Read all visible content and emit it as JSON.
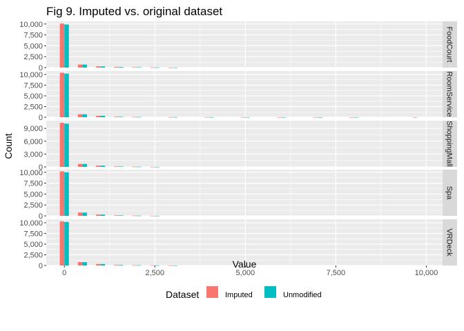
{
  "chart_data": {
    "type": "bar",
    "title": "Fig 9. Imputed vs. original dataset",
    "xlabel": "Value",
    "ylabel": "Count",
    "xlim": [
      -500,
      10450
    ],
    "x_ticks": [
      0,
      2500,
      5000,
      7500,
      10000
    ],
    "x_tick_labels": [
      "0",
      "2,500",
      "5,000",
      "7,500",
      "10,000"
    ],
    "bin_width": 250,
    "legend": {
      "title": "Dataset",
      "position": "bottom",
      "entries": [
        {
          "name": "Imputed",
          "color": "#F8766D"
        },
        {
          "name": "Unmodified",
          "color": "#00BFC4"
        }
      ]
    },
    "colors": {
      "panel_bg": "#ebebeb",
      "strip_bg": "#d9d9d9",
      "grid": "#ffffff"
    },
    "panels": [
      {
        "name": "FoodCourt",
        "ylim": [
          0,
          10600
        ],
        "y_ticks": [
          0,
          2500,
          5000,
          7500,
          10000
        ],
        "y_tick_labels": [
          "0",
          "2,500",
          "5,000",
          "7,500",
          "10,000"
        ],
        "bins": [
          0,
          500,
          1000,
          1500,
          2000,
          2500,
          3000
        ],
        "series": [
          {
            "name": "Imputed",
            "values": [
              10100,
              700,
              280,
              150,
              90,
              40,
              15
            ]
          },
          {
            "name": "Unmodified",
            "values": [
              9900,
              690,
              270,
              140,
              85,
              35,
              12
            ]
          }
        ]
      },
      {
        "name": "RoomService",
        "ylim": [
          0,
          10800
        ],
        "y_ticks": [
          0,
          2500,
          5000,
          7500,
          10000
        ],
        "y_tick_labels": [
          "0",
          "2,500",
          "5,000",
          "7,500",
          "10,000"
        ],
        "bins": [
          0,
          500,
          1000,
          1500,
          2000,
          3000,
          4000,
          5000,
          6000,
          7000,
          8000,
          9750
        ],
        "series": [
          {
            "name": "Imputed",
            "values": [
              10400,
              700,
              350,
              120,
              60,
              30,
              20,
              15,
              10,
              8,
              6,
              5
            ]
          },
          {
            "name": "Unmodified",
            "values": [
              10200,
              680,
              340,
              110,
              55,
              28,
              18,
              12,
              9,
              7,
              5,
              0
            ]
          }
        ]
      },
      {
        "name": "ShoppingMall",
        "ylim": [
          0,
          10800
        ],
        "y_ticks": [
          0,
          3000,
          6000,
          9000
        ],
        "y_tick_labels": [
          "0",
          "3,000",
          "6,000",
          "9,000"
        ],
        "bins": [
          0,
          500,
          1000,
          1500,
          2000,
          2500
        ],
        "series": [
          {
            "name": "Imputed",
            "values": [
              10300,
              700,
              300,
              110,
              50,
              15
            ]
          },
          {
            "name": "Unmodified",
            "values": [
              10100,
              690,
              290,
              105,
              45,
              12
            ]
          }
        ]
      },
      {
        "name": "Spa",
        "ylim": [
          0,
          10600
        ],
        "y_ticks": [
          0,
          2500,
          5000,
          7500,
          10000
        ],
        "y_tick_labels": [
          "0",
          "2,500",
          "5,000",
          "7,500",
          "10,000"
        ],
        "bins": [
          0,
          500,
          1000,
          1500,
          2000,
          2500
        ],
        "series": [
          {
            "name": "Imputed",
            "values": [
              10200,
              750,
              300,
              110,
              50,
              15
            ]
          },
          {
            "name": "Unmodified",
            "values": [
              10000,
              740,
              290,
              105,
              45,
              12
            ]
          }
        ]
      },
      {
        "name": "VRDeck",
        "ylim": [
          0,
          10800
        ],
        "y_ticks": [
          0,
          2500,
          5000,
          7500,
          10000
        ],
        "y_tick_labels": [
          "0",
          "2,500",
          "5,000",
          "7,500",
          "10,000"
        ],
        "bins": [
          0,
          500,
          1000,
          1500,
          2000,
          2500,
          3000
        ],
        "series": [
          {
            "name": "Imputed",
            "values": [
              10300,
              800,
              350,
              130,
              60,
              30,
              10
            ]
          },
          {
            "name": "Unmodified",
            "values": [
              10150,
              780,
              340,
              125,
              55,
              28,
              8
            ]
          }
        ]
      }
    ]
  }
}
